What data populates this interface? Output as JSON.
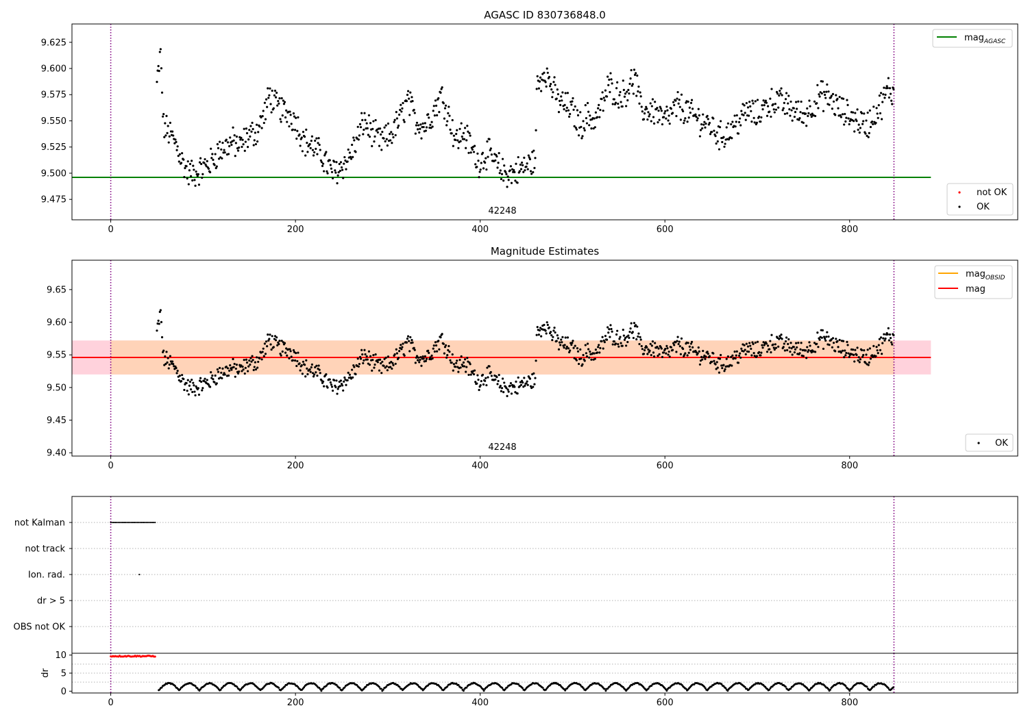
{
  "chart_data": [
    {
      "type": "scatter",
      "title": "AGASC ID 830736848.0",
      "xlabel": "",
      "ylabel": "",
      "xlim": [
        -42,
        982
      ],
      "ylim": [
        9.4555,
        9.6425
      ],
      "x_ticks": [
        0,
        200,
        400,
        600,
        800
      ],
      "y_ticks": [
        9.475,
        9.5,
        9.525,
        9.55,
        9.575,
        9.6,
        9.625
      ],
      "y_tick_labels": [
        "9.475",
        "9.500",
        "9.525",
        "9.550",
        "9.575",
        "9.600",
        "9.625"
      ],
      "vlines": [
        0,
        848
      ],
      "obs_label": {
        "text": "42248",
        "x": 424
      },
      "hline": {
        "name": "mag_AGASC",
        "value": 9.496,
        "x_range": [
          -42,
          888
        ],
        "color": "#008000"
      },
      "legend_lines": [
        {
          "base": "mag",
          "sub": "AGASC",
          "color": "#008000"
        }
      ],
      "legend_markers": [
        {
          "label": "not OK",
          "color": "#ff0000"
        },
        {
          "label": "OK",
          "color": "#000000"
        }
      ],
      "anchors": [
        [
          50,
          9.585
        ],
        [
          54,
          9.614
        ],
        [
          57,
          9.545
        ],
        [
          62,
          9.54
        ],
        [
          66,
          9.535
        ],
        [
          72,
          9.525
        ],
        [
          78,
          9.51
        ],
        [
          84,
          9.5
        ],
        [
          92,
          9.5
        ],
        [
          100,
          9.505
        ],
        [
          108,
          9.51
        ],
        [
          116,
          9.52
        ],
        [
          124,
          9.525
        ],
        [
          132,
          9.53
        ],
        [
          140,
          9.525
        ],
        [
          148,
          9.535
        ],
        [
          158,
          9.54
        ],
        [
          166,
          9.555
        ],
        [
          172,
          9.575
        ],
        [
          178,
          9.565
        ],
        [
          186,
          9.56
        ],
        [
          194,
          9.556
        ],
        [
          200,
          9.55
        ],
        [
          210,
          9.53
        ],
        [
          220,
          9.525
        ],
        [
          230,
          9.515
        ],
        [
          240,
          9.5
        ],
        [
          248,
          9.505
        ],
        [
          258,
          9.515
        ],
        [
          266,
          9.53
        ],
        [
          274,
          9.55
        ],
        [
          282,
          9.54
        ],
        [
          292,
          9.53
        ],
        [
          302,
          9.535
        ],
        [
          312,
          9.55
        ],
        [
          322,
          9.57
        ],
        [
          330,
          9.55
        ],
        [
          340,
          9.545
        ],
        [
          350,
          9.56
        ],
        [
          358,
          9.575
        ],
        [
          366,
          9.555
        ],
        [
          374,
          9.53
        ],
        [
          382,
          9.54
        ],
        [
          390,
          9.525
        ],
        [
          398,
          9.51
        ],
        [
          408,
          9.52
        ],
        [
          416,
          9.51
        ],
        [
          426,
          9.5
        ],
        [
          436,
          9.5
        ],
        [
          446,
          9.505
        ],
        [
          456,
          9.51
        ],
        [
          460,
          9.515
        ],
        [
          461,
          9.58
        ],
        [
          470,
          9.6
        ],
        [
          476,
          9.585
        ],
        [
          484,
          9.57
        ],
        [
          492,
          9.565
        ],
        [
          500,
          9.56
        ],
        [
          508,
          9.545
        ],
        [
          516,
          9.555
        ],
        [
          524,
          9.55
        ],
        [
          532,
          9.565
        ],
        [
          540,
          9.585
        ],
        [
          548,
          9.575
        ],
        [
          556,
          9.575
        ],
        [
          562,
          9.585
        ],
        [
          568,
          9.59
        ],
        [
          574,
          9.56
        ],
        [
          582,
          9.56
        ],
        [
          590,
          9.56
        ],
        [
          598,
          9.55
        ],
        [
          606,
          9.555
        ],
        [
          614,
          9.565
        ],
        [
          622,
          9.56
        ],
        [
          630,
          9.555
        ],
        [
          640,
          9.55
        ],
        [
          650,
          9.545
        ],
        [
          660,
          9.535
        ],
        [
          670,
          9.54
        ],
        [
          680,
          9.55
        ],
        [
          690,
          9.56
        ],
        [
          700,
          9.555
        ],
        [
          710,
          9.565
        ],
        [
          720,
          9.57
        ],
        [
          730,
          9.565
        ],
        [
          740,
          9.56
        ],
        [
          750,
          9.555
        ],
        [
          760,
          9.565
        ],
        [
          770,
          9.575
        ],
        [
          780,
          9.57
        ],
        [
          790,
          9.56
        ],
        [
          800,
          9.555
        ],
        [
          810,
          9.55
        ],
        [
          818,
          9.545
        ],
        [
          826,
          9.555
        ],
        [
          834,
          9.565
        ],
        [
          842,
          9.58
        ],
        [
          848,
          9.575
        ]
      ],
      "points_generated": "about 1000 points between x=50 and x=848 following the anchor curve with noise of +/-0.012"
    },
    {
      "type": "scatter",
      "title": "Magnitude Estimates",
      "xlabel": "",
      "ylabel": "",
      "xlim": [
        -42,
        982
      ],
      "ylim": [
        9.395,
        9.695
      ],
      "x_ticks": [
        0,
        200,
        400,
        600,
        800
      ],
      "y_ticks": [
        9.4,
        9.45,
        9.5,
        9.55,
        9.6,
        9.65
      ],
      "y_tick_labels": [
        "9.40",
        "9.45",
        "9.50",
        "9.55",
        "9.60",
        "9.65"
      ],
      "vlines": [
        0,
        848
      ],
      "obs_label": {
        "text": "42248",
        "x": 424
      },
      "band_mag": {
        "lo": 9.52,
        "hi": 9.572,
        "x_range": [
          -42,
          888
        ],
        "color": "#ffd2dc"
      },
      "band_obsid": {
        "lo": 9.52,
        "hi": 9.572,
        "x_range": [
          0,
          848
        ],
        "color": "#ffd3b8"
      },
      "hline_mag": {
        "value": 9.546,
        "x_range": [
          -42,
          888
        ],
        "color": "#ff0000"
      },
      "hline_obsid": {
        "value": 9.546,
        "x_range": [
          0,
          848
        ],
        "color": "#ffa500"
      },
      "legend_lines": [
        {
          "base": "mag",
          "sub": "OBSID",
          "color": "#ffa500"
        },
        {
          "base": "mag",
          "sub": "",
          "color": "#ff0000"
        }
      ],
      "legend_markers": [
        {
          "label": "OK",
          "color": "#000000"
        }
      ],
      "points_source": "same points as panel 1"
    },
    {
      "type": "scatter",
      "title": "",
      "xlim": [
        -42,
        982
      ],
      "categories": [
        "not Kalman",
        "not track",
        "Ion. rad.",
        "dr > 5",
        "OBS not OK"
      ],
      "vlines": [
        0,
        848
      ],
      "flag_points": [
        {
          "category": "not Kalman",
          "x_range": [
            0,
            49
          ],
          "step": 1.6,
          "color": "#000000"
        },
        {
          "category": "Ion. rad.",
          "x_values": [
            31
          ],
          "color": "#000000"
        }
      ]
    },
    {
      "type": "scatter",
      "title": "",
      "ylabel": "dr",
      "xlim": [
        -42,
        982
      ],
      "ylim": [
        -0.5,
        10.5
      ],
      "x_ticks": [
        0,
        200,
        400,
        600,
        800
      ],
      "y_ticks": [
        0,
        5,
        10
      ],
      "y_tick_labels": [
        "0",
        "5",
        "10"
      ],
      "vlines": [
        0,
        848
      ],
      "not_ok_points": {
        "x_range": [
          0,
          49
        ],
        "value": 9.7,
        "color": "#ff0000"
      },
      "ok_points": {
        "x_range": [
          52,
          848
        ],
        "mean": 1.2,
        "amplitude": 1.0,
        "period": 22,
        "color": "#000000"
      }
    }
  ]
}
